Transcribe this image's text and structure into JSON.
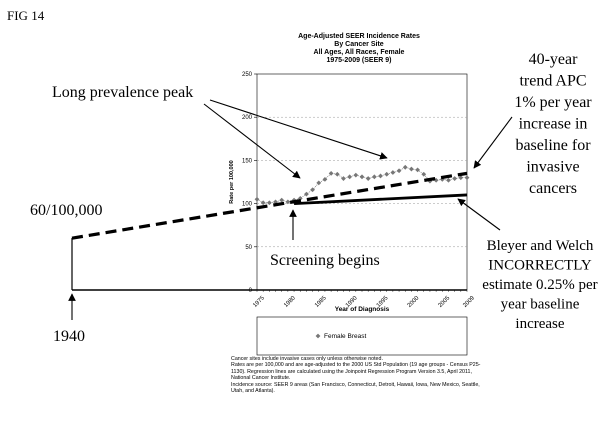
{
  "figure_label": "FIG 14",
  "chart_data": {
    "type": "line",
    "title": [
      "Age-Adjusted SEER Incidence Rates",
      "By Cancer Site",
      "All Ages, All Races, Female",
      "1975-2009  (SEER 9)"
    ],
    "xlabel": "Year of Diagnosis",
    "ylabel": "Rate per 100,000",
    "xlim": [
      1975,
      2009
    ],
    "ylim": [
      0,
      250
    ],
    "x_ticks": [
      "1975",
      "1980",
      "1985",
      "1990",
      "1995",
      "2000",
      "2005",
      "2009"
    ],
    "y_ticks": [
      "0",
      "50",
      "100",
      "150",
      "200",
      "250"
    ],
    "grid": true,
    "legend": {
      "placement": "below",
      "entries": [
        "Female Breast"
      ]
    },
    "series": [
      {
        "name": "Female Breast",
        "marker": "diamond",
        "x": [
          1975,
          1976,
          1977,
          1978,
          1979,
          1980,
          1981,
          1982,
          1983,
          1984,
          1985,
          1986,
          1987,
          1988,
          1989,
          1990,
          1991,
          1992,
          1993,
          1994,
          1995,
          1996,
          1997,
          1998,
          1999,
          2000,
          2001,
          2002,
          2003,
          2004,
          2005,
          2006,
          2007,
          2008,
          2009
        ],
        "y": [
          105,
          101,
          101,
          102,
          104,
          102,
          104,
          106,
          111,
          116,
          124,
          128,
          135,
          134,
          129,
          131,
          133,
          131,
          129,
          131,
          132,
          134,
          136,
          138,
          142,
          140,
          139,
          134,
          126,
          127,
          128,
          127,
          129,
          130,
          130
        ]
      }
    ],
    "trend_lines": [
      {
        "style": "dashed",
        "x": [
          1940,
          2009
        ],
        "y": [
          60,
          135
        ]
      },
      {
        "style": "solid",
        "x": [
          1981,
          2009
        ],
        "y": [
          100,
          110
        ]
      }
    ]
  },
  "annotations": {
    "peak": "Long prevalence peak",
    "baseline": "60/100,000",
    "screening": "Screening begins",
    "year_1940": "1940",
    "apc": [
      "40-year",
      "trend APC",
      "1% per year",
      "increase in",
      "baseline for",
      "invasive",
      "cancers"
    ],
    "bleyer": [
      "Bleyer and Welch",
      "INCORRECTLY",
      "estimate 0.25% per",
      "year baseline",
      "increase"
    ]
  },
  "footnotes": [
    "Cancer sites include invasive cases only unless otherwise noted.",
    "Rates are per 100,000 and are age-adjusted to the 2000 US Std Population (19 age groups - Census P25-1130). Regression lines are calculated using the Joinpoint Regression Program Version 3.5, April 2011, National Cancer Institute.",
    "Incidence source: SEER 9 areas (San Francisco, Connecticut, Detroit, Hawaii, Iowa, New Mexico, Seattle, Utah, and Atlanta)."
  ]
}
